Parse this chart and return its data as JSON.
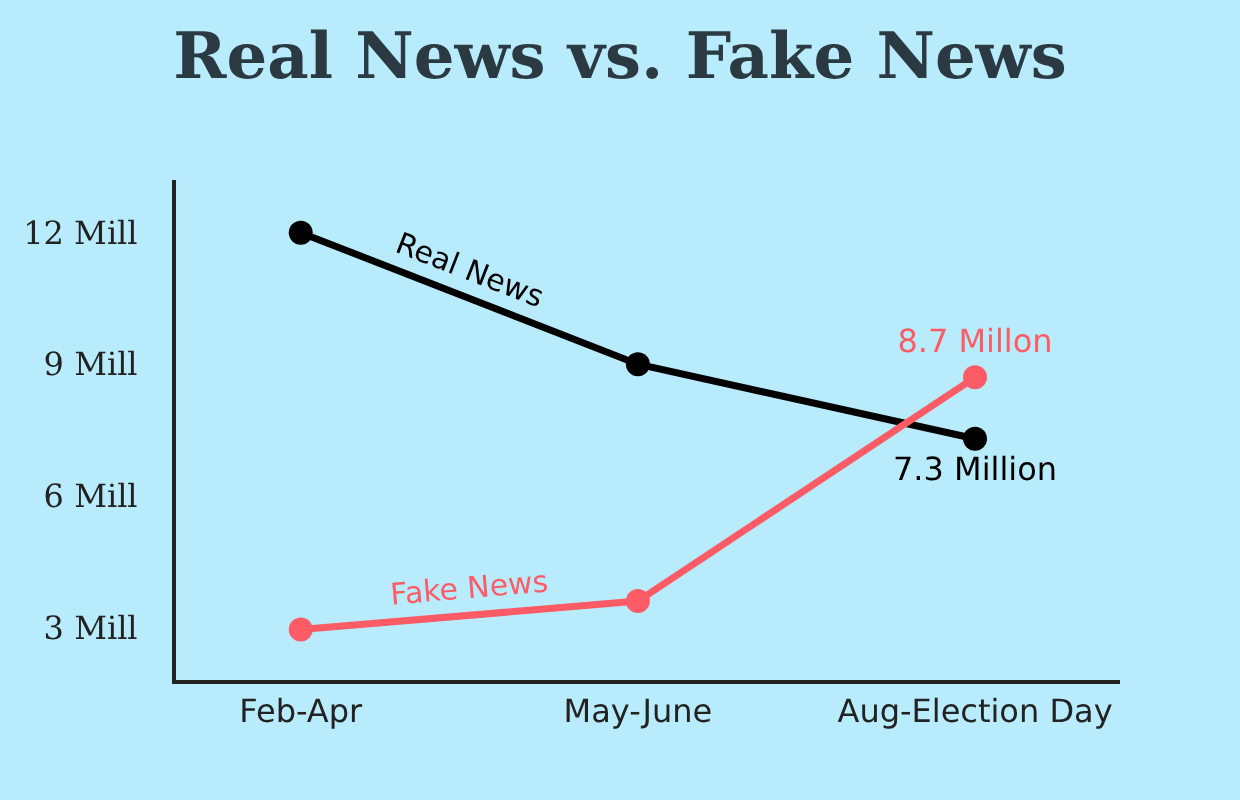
{
  "chart_data": {
    "type": "line",
    "title": "Real News vs. Fake News",
    "categories": [
      "Feb-Apr",
      "May-June",
      "Aug-Election Day"
    ],
    "series": [
      {
        "name": "Real News",
        "color": "#000000",
        "values": [
          12,
          9,
          7.3
        ],
        "value_labels": [
          null,
          null,
          "7.3 Million"
        ]
      },
      {
        "name": "Fake News",
        "color": "#fd5c66",
        "values": [
          2.95,
          3.6,
          8.7
        ],
        "value_labels": [
          null,
          null,
          "8.7 Millon"
        ]
      }
    ],
    "ylim": [
      1.8,
      13.2
    ],
    "yticks": [
      {
        "value": 3,
        "label": "3 Mill"
      },
      {
        "value": 6,
        "label": "6 Mill"
      },
      {
        "value": 9,
        "label": "9 Mill"
      },
      {
        "value": 12,
        "label": "12 Mill"
      }
    ],
    "grid": false,
    "marker": "circle",
    "line_style": "solid"
  }
}
